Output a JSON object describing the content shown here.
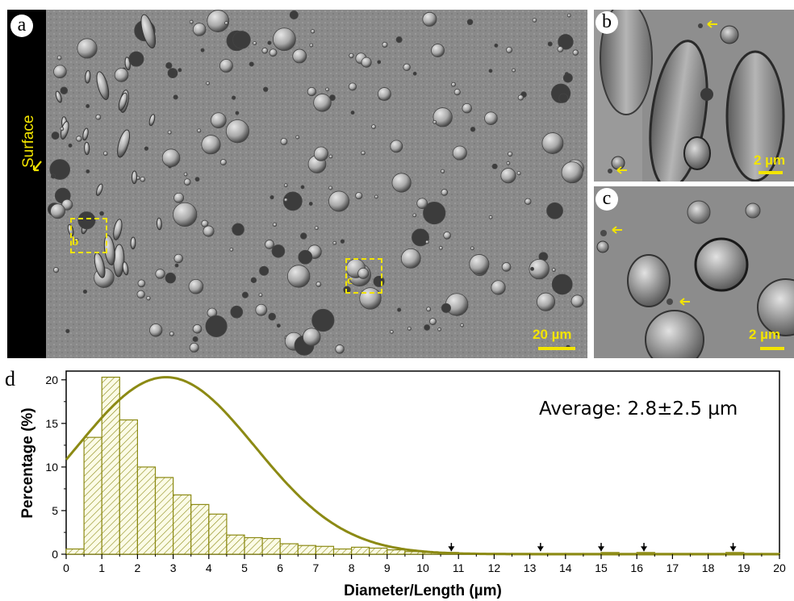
{
  "panels": {
    "a": {
      "label": "a",
      "scale_bar": "20 µm",
      "side_label": "Surface",
      "roi_b": "b",
      "roi_c": "c"
    },
    "b": {
      "label": "b",
      "scale_bar": "2 µm"
    },
    "c": {
      "label": "c",
      "scale_bar": "2 µm"
    },
    "d": {
      "label": "d"
    }
  },
  "colors": {
    "bar": "#8c8a14",
    "curve": "#8c8a14",
    "annotation": "#f2e400"
  },
  "icons": [
    "yellow-arrow-icon",
    "down-arrow-icon"
  ],
  "chart_data": {
    "type": "bar",
    "title": "",
    "xlabel": "Diameter/Length (µm)",
    "ylabel": "Percentage (%)",
    "xlim": [
      0,
      20
    ],
    "ylim": [
      0,
      21
    ],
    "xticks": [
      "0",
      "1",
      "2",
      "3",
      "4",
      "5",
      "6",
      "7",
      "8",
      "9",
      "10",
      "11",
      "12",
      "13",
      "14",
      "15",
      "16",
      "17",
      "18",
      "19",
      "20"
    ],
    "yticks": [
      "0",
      "5",
      "10",
      "15",
      "20"
    ],
    "bin_width": 0.5,
    "bin_starts": [
      0,
      0.5,
      1,
      1.5,
      2,
      2.5,
      3,
      3.5,
      4,
      4.5,
      5,
      5.5,
      6,
      6.5,
      7,
      7.5,
      8,
      8.5,
      9,
      9.5,
      10,
      10.5,
      11,
      11.5,
      12,
      12.5,
      13,
      13.5,
      14,
      14.5,
      15,
      15.5,
      16,
      16.5,
      17,
      17.5,
      18,
      18.5,
      19,
      19.5
    ],
    "values": [
      0.6,
      13.4,
      20.3,
      15.4,
      10,
      8.8,
      6.8,
      5.7,
      4.6,
      2.2,
      1.9,
      1.8,
      1.2,
      1,
      0.9,
      0.6,
      0.8,
      0.7,
      0.5,
      0.3,
      0.2,
      0.2,
      0.1,
      0.1,
      0.1,
      0.1,
      0.1,
      0.1,
      0.1,
      0.1,
      0.2,
      0.1,
      0.2,
      0.1,
      0.1,
      0.1,
      0.1,
      0.2,
      0.1,
      0.1
    ],
    "fit_curve": {
      "type": "normal",
      "peak_x": 2.8,
      "peak_y": 20.3,
      "sigma": 2.5,
      "y_at_0": 10.8
    },
    "annotation": "Average: 2.8±2.5 µm",
    "arrow_markers_x": [
      10.8,
      13.3,
      15,
      16.2,
      18.7
    ],
    "grid": false,
    "legend": "none"
  }
}
